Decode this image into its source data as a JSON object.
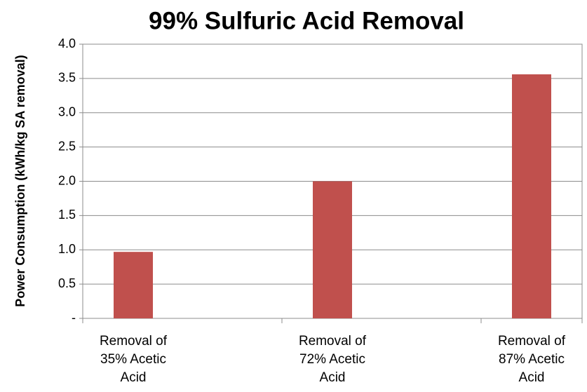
{
  "chart_data": {
    "type": "bar",
    "title": "99% Sulfuric Acid Removal",
    "ylabel": "Power Consumption  (kWh/kg SA removal)",
    "categories": [
      "Removal of 35% Acetic Acid",
      "Removal of 72% Acetic Acid",
      "Removal of 87% Acetic Acid"
    ],
    "values": [
      0.97,
      2.0,
      3.56
    ],
    "color": "#c0504d",
    "ylim": [
      0,
      4
    ],
    "yticks": [
      {
        "value": 0,
        "label": "-"
      },
      0.5,
      {
        "value": 1,
        "label": "1.0"
      },
      1.5,
      {
        "value": 2,
        "label": "2.0"
      },
      2.5,
      {
        "value": 3,
        "label": "3.0"
      },
      3.5,
      {
        "value": 4,
        "label": "4.0"
      }
    ],
    "grid": true
  }
}
